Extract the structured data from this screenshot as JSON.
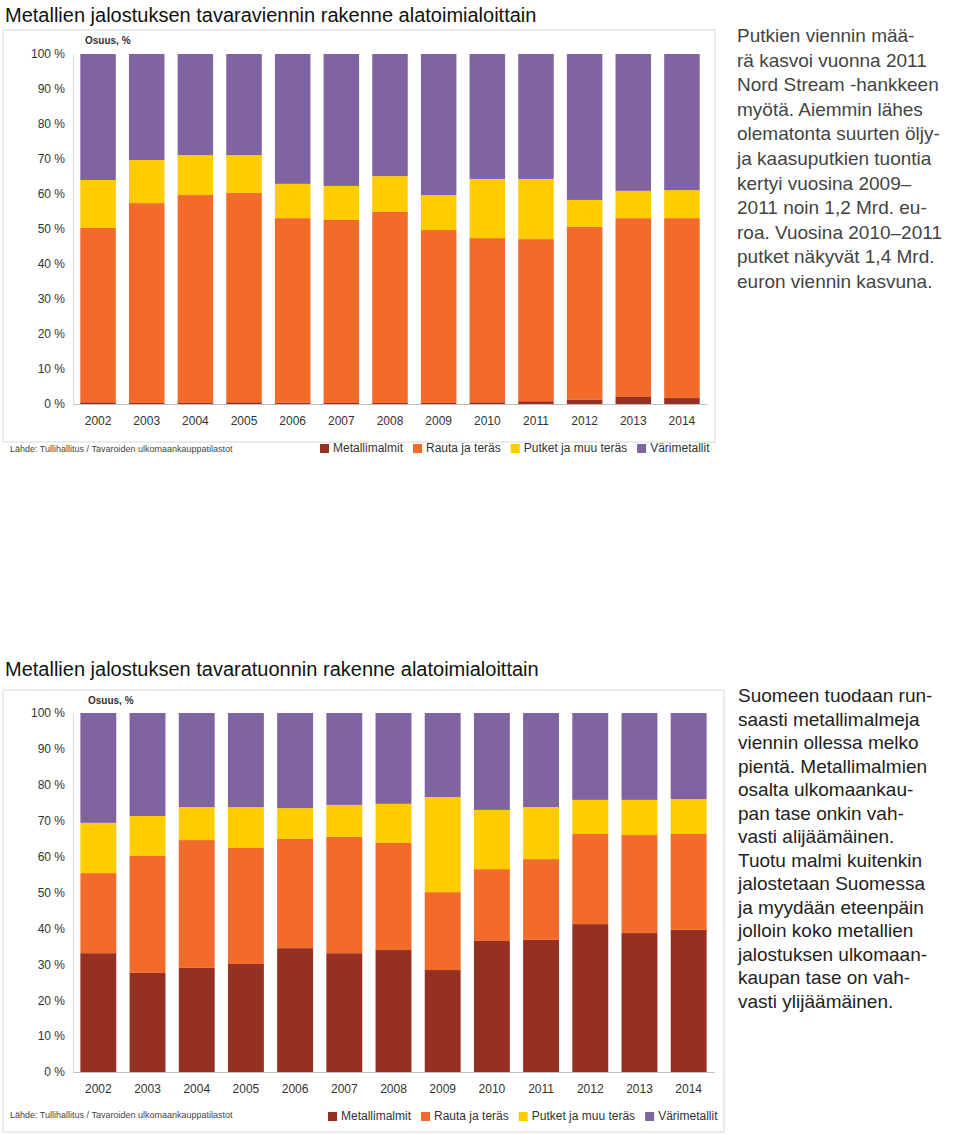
{
  "chart_data": [
    {
      "type": "bar",
      "stacked": true,
      "legend": "bottom",
      "title": "Metallien jalostuksen tavaraviennin rakenne alatoimialoittain",
      "y_label": "Osuus, %",
      "source": "Lähde: Tullihallitus / Tavaroiden ulkomaankauppatilastot",
      "annotations": [
        "Putkien viennin mää-",
        "rä kasvoi vuonna 2011",
        "Nord Stream -hankkeen",
        "myötä. Aiemmin lähes",
        "olematonta suurten öljy-",
        "ja kaasuputkien tuontia",
        "kertyi vuosina 2009–",
        "2011 noin 1,2 Mrd. eu-",
        "roa. Vuosina 2010–2011",
        "putket näkyvät 1,4 Mrd.",
        "euron viennin kasvuna."
      ],
      "categories": [
        "2002",
        "2003",
        "2004",
        "2005",
        "2006",
        "2007",
        "2008",
        "2009",
        "2010",
        "2011",
        "2012",
        "2013",
        "2014"
      ],
      "series": [
        {
          "name": "Metallimalmit",
          "color": "#953123",
          "values": [
            0.5,
            0.3,
            0.3,
            0.5,
            0.4,
            0.3,
            0.3,
            0.3,
            0.5,
            0.8,
            1.3,
            2.0,
            1.7
          ]
        },
        {
          "name": "Rauta ja teräs",
          "color": "#f26b2a",
          "values": [
            49.8,
            57.1,
            59.4,
            59.8,
            52.7,
            52.3,
            54.6,
            49.4,
            46.9,
            46.3,
            49.3,
            51.1,
            51.4
          ]
        },
        {
          "name": "Putket ja muu teräs",
          "color": "#ffcc00",
          "values": [
            13.7,
            12.3,
            11.4,
            10.8,
            9.8,
            9.7,
            10.2,
            10.0,
            16.9,
            17.2,
            7.7,
            7.8,
            8.0
          ]
        },
        {
          "name": "Värimetallit",
          "color": "#8064a2",
          "values": [
            36.0,
            30.3,
            28.9,
            28.9,
            37.1,
            37.7,
            34.9,
            40.3,
            35.7,
            35.7,
            41.7,
            39.1,
            38.9
          ]
        }
      ],
      "ylim": [
        0,
        100
      ],
      "yticks": [
        {
          "value": 0,
          "label": "0 %"
        },
        {
          "value": 10,
          "label": "10 %"
        },
        {
          "value": 20,
          "label": "20 %"
        },
        {
          "value": 30,
          "label": "30 %"
        },
        {
          "value": 40,
          "label": "40 %"
        },
        {
          "value": 50,
          "label": "50 %"
        },
        {
          "value": 60,
          "label": "60 %"
        },
        {
          "value": 70,
          "label": "70 %"
        },
        {
          "value": 80,
          "label": "80 %"
        },
        {
          "value": 90,
          "label": "90 %"
        },
        {
          "value": 100,
          "label": "100 %"
        }
      ],
      "grid": false
    },
    {
      "type": "bar",
      "stacked": true,
      "legend": "bottom",
      "title": "Metallien jalostuksen tavaratuonnin rakenne alatoimialoittain",
      "y_label": "Osuus, %",
      "source": "Lähde: Tullihallitus / Tavaroiden ulkomaankauppatilastot",
      "annotations": [
        "Suomeen tuodaan run-",
        "saasti metallimalmeja",
        "viennin ollessa melko",
        "pientä. Metallimalmien",
        "osalta ulkomaankau-",
        "pan tase onkin vah-",
        "vasti alijäämäinen.",
        "Tuotu malmi kuitenkin",
        "jalostetaan Suomessa",
        "ja myydään eteenpäin",
        "jolloin koko metallien",
        "jalostuksen ulkomaan-",
        "kaupan tase on vah-",
        "vasti ylijäämäinen."
      ],
      "categories": [
        "2002",
        "2003",
        "2004",
        "2005",
        "2006",
        "2007",
        "2008",
        "2009",
        "2010",
        "2011",
        "2012",
        "2013",
        "2014"
      ],
      "series": [
        {
          "name": "Metallimalmit",
          "color": "#953123",
          "values": [
            33.1,
            27.6,
            29.0,
            30.1,
            34.5,
            33.1,
            34.0,
            28.4,
            36.5,
            36.8,
            41.2,
            38.7,
            39.6
          ]
        },
        {
          "name": "Rauta ja teräs",
          "color": "#f26b2a",
          "values": [
            22.3,
            32.6,
            35.6,
            32.3,
            30.4,
            32.4,
            29.8,
            21.7,
            20.0,
            22.5,
            25.1,
            27.3,
            26.7
          ]
        },
        {
          "name": "Putket ja muu teräs",
          "color": "#ffcc00",
          "values": [
            14.0,
            11.1,
            9.2,
            11.4,
            8.6,
            8.9,
            10.9,
            26.5,
            16.5,
            14.5,
            9.5,
            9.8,
            9.7
          ]
        },
        {
          "name": "Värimetallit",
          "color": "#8064a2",
          "values": [
            30.6,
            28.7,
            26.2,
            26.2,
            26.5,
            25.6,
            25.3,
            23.4,
            27.0,
            26.2,
            24.2,
            24.2,
            24.0
          ]
        }
      ],
      "ylim": [
        0,
        100
      ],
      "yticks": [
        {
          "value": 0,
          "label": "0 %"
        },
        {
          "value": 10,
          "label": "10 %"
        },
        {
          "value": 20,
          "label": "20 %"
        },
        {
          "value": 30,
          "label": "30 %"
        },
        {
          "value": 40,
          "label": "40 %"
        },
        {
          "value": 50,
          "label": "50 %"
        },
        {
          "value": 60,
          "label": "60 %"
        },
        {
          "value": 70,
          "label": "70 %"
        },
        {
          "value": 80,
          "label": "80 %"
        },
        {
          "value": 90,
          "label": "90 %"
        },
        {
          "value": 100,
          "label": "100 %"
        }
      ],
      "grid": false
    }
  ]
}
